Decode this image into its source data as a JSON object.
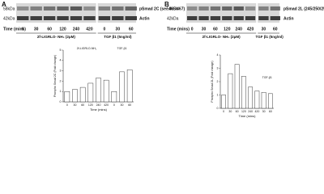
{
  "panels": [
    {
      "letter": "A",
      "markers": [
        "58kDa",
        "42kDa"
      ],
      "bands": [
        "pSmad 2C (ser 465/467)",
        "Actin"
      ],
      "time_title": "Time (mins)",
      "times": [
        "0",
        "30",
        "60",
        "120",
        "240",
        "420",
        "0",
        "30",
        "60"
      ],
      "treatments": [
        "2f-LIGRLO- NH₂ (2μM)",
        "TGF β1 (5ng/ml)"
      ],
      "chart": {
        "type": "bar",
        "y_label": "Phospho Smad 2C (Fold change)",
        "x_label": "Time (mins)",
        "groups": [
          "2f-LIGRLO-NH₂",
          "TGF-β1"
        ],
        "categories": [
          "0",
          "30",
          "60",
          "120",
          "240",
          "420",
          "0",
          "30",
          "60"
        ],
        "values": [
          1,
          1.2,
          1.4,
          1.8,
          2.3,
          2.1,
          1,
          2.9,
          3.1
        ],
        "color": "#ffffff",
        "ylim": [
          0,
          5
        ],
        "yticks": [
          0,
          1,
          2,
          3,
          4,
          5
        ]
      }
    },
    {
      "letter": "B",
      "markers": [
        "58kDa",
        "42kDa"
      ],
      "bands": [
        "pSmad 2L (245/250/255)",
        "Actin"
      ],
      "time_title": "Time (mins)",
      "times": [
        "0",
        "30",
        "60",
        "120",
        "240",
        "420",
        "30",
        "60"
      ],
      "treatments": [
        "2f-LIGRLO- NH₂ (2μM)",
        "TGF β1 (5ng/ml)"
      ],
      "chart": {
        "type": "bar",
        "y_label": "Phospho Smad 2L (Fold change)",
        "x_label": "Time (mins)",
        "groups": [
          "TGF-β1"
        ],
        "categories": [
          "0",
          "30",
          "60",
          "120",
          "240",
          "420",
          "30",
          "60"
        ],
        "values": [
          1,
          2.6,
          3.3,
          2.4,
          1.6,
          1.3,
          1.2,
          1.1
        ],
        "color": "#ffffff",
        "ylim": [
          0,
          4
        ],
        "yticks": [
          0,
          1,
          2,
          3,
          4
        ]
      }
    }
  ]
}
